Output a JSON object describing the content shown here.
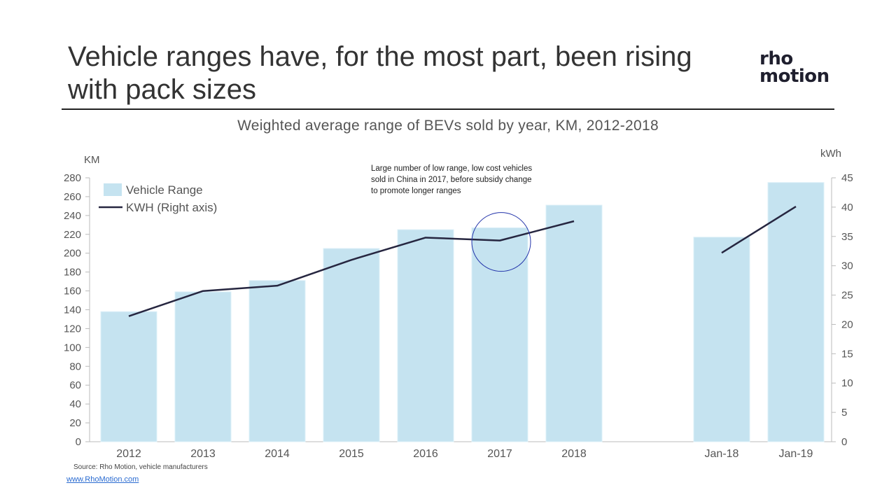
{
  "slide": {
    "title_line1": "Vehicle ranges have, for the most part, been rising",
    "title_line2": "with pack sizes",
    "logo_line1": "rho",
    "logo_line2": "motion",
    "source": "Source: Rho Motion, vehicle manufacturers",
    "link": "www.RhoMotion.com"
  },
  "colors": {
    "bar": "#c5e3f0",
    "line": "#262640",
    "axis": "#bbbbbb",
    "text": "#555555",
    "circle": "#2233aa"
  },
  "chart_data": {
    "type": "bar",
    "title": "Weighted average range of BEVs sold by year, KM, 2012-2018",
    "categories": [
      "2012",
      "2013",
      "2014",
      "2015",
      "2016",
      "2017",
      "2018",
      "Jan-18",
      "Jan-19"
    ],
    "y_left_label": "KM",
    "y_right_label": "kWh",
    "y_left_ticks": [
      0,
      20,
      40,
      60,
      80,
      100,
      120,
      140,
      160,
      180,
      200,
      220,
      240,
      260,
      280
    ],
    "y_right_ticks": [
      0,
      5,
      10,
      15,
      20,
      25,
      30,
      35,
      40,
      45
    ],
    "ylim_left": [
      0,
      280
    ],
    "ylim_right": [
      0,
      45
    ],
    "series": [
      {
        "name": "Vehicle Range",
        "type": "bar",
        "axis": "left",
        "values": [
          138,
          159,
          171,
          205,
          225,
          227,
          251,
          217,
          275
        ]
      },
      {
        "name": "KWH (Right axis)",
        "type": "line",
        "axis": "right",
        "segments": [
          {
            "categories": [
              "2012",
              "2013",
              "2014",
              "2015",
              "2016",
              "2017",
              "2018"
            ],
            "values": [
              21.4,
              25.7,
              26.6,
              31.0,
              34.8,
              34.3,
              37.6
            ]
          },
          {
            "categories": [
              "Jan-18",
              "Jan-19"
            ],
            "values": [
              32.2,
              40.1
            ]
          }
        ]
      }
    ],
    "annotation": {
      "lines": [
        "Large number of low range, low cost vehicles",
        "sold in China in 2017, before subsidy change",
        "to promote longer ranges"
      ],
      "category": "2017"
    },
    "legend": "top-left",
    "grid": false
  }
}
